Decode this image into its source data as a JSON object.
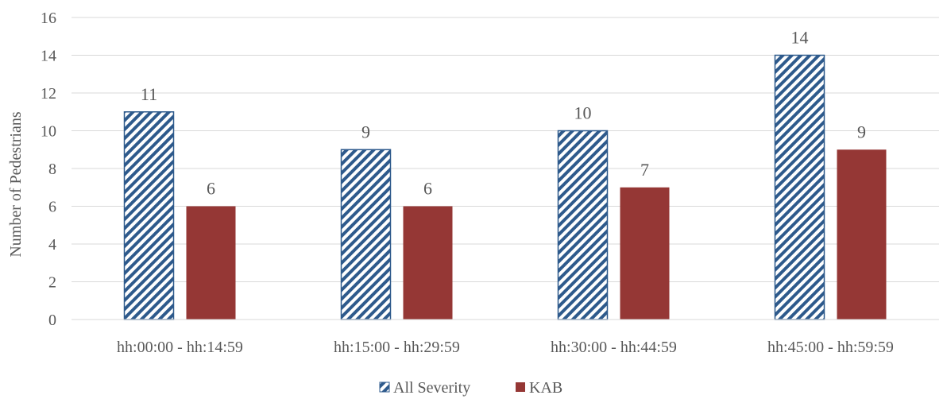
{
  "chart_data": {
    "type": "bar",
    "title": "",
    "xlabel": "",
    "ylabel": "Number of Pedestrians",
    "ylim": [
      0,
      16
    ],
    "yticks": [
      0,
      2,
      4,
      6,
      8,
      10,
      12,
      14,
      16
    ],
    "grid": true,
    "legend_position": "bottom-center",
    "categories": [
      "hh:00:00 - hh:14:59",
      "hh:15:00 - hh:29:59",
      "hh:30:00 - hh:44:59",
      "hh:45:00 - hh:59:59"
    ],
    "series": [
      {
        "name": "All Severity",
        "values": [
          11,
          9,
          10,
          14
        ],
        "color": "#2e5a8c",
        "fill": "diagonal-hatch"
      },
      {
        "name": "KAB",
        "values": [
          6,
          6,
          7,
          9
        ],
        "color": "#953735",
        "fill": "solid"
      }
    ]
  }
}
